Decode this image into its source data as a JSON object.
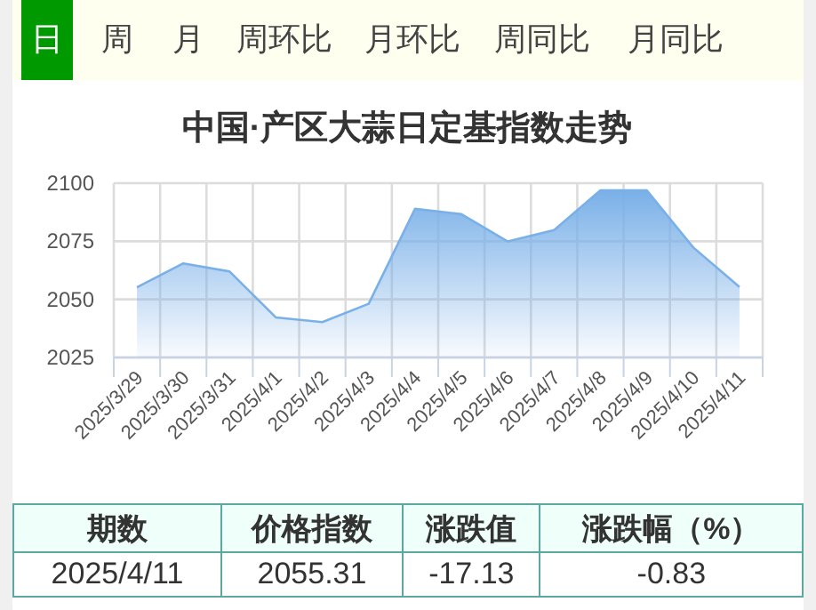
{
  "chart_data": [
    {
      "type": "other",
      "annotations": [
        "日",
        "周",
        "月",
        "周环比",
        "月环比",
        "周同比",
        "月同比"
      ]
    },
    {
      "type": "area",
      "title": "中国·产区大蒜日定基指数走势",
      "categories": [
        "2025/3/29",
        "2025/3/30",
        "2025/3/31",
        "2025/4/1",
        "2025/4/2",
        "2025/4/3",
        "2025/4/4",
        "2025/4/5",
        "2025/4/6",
        "2025/4/7",
        "2025/4/8",
        "2025/4/9",
        "2025/4/10",
        "2025/4/11"
      ],
      "values": [
        2055.2,
        2065.5,
        2062,
        2042.2,
        2040.2,
        2048.1,
        2089,
        2086.7,
        2074.9,
        2079.8,
        2096.9,
        2096.9,
        2072.4,
        2055.3
      ],
      "color": "#7ab0e8",
      "ylim": [
        2025,
        2100
      ],
      "yticks": [
        2025,
        2050,
        2075,
        2100
      ],
      "grid": true,
      "marker": "none",
      "line_style": "solid"
    },
    {
      "type": "other",
      "annotations": [
        "期数",
        "价格指数",
        "涨跌值",
        "涨跌幅（%）",
        "2025/4/11",
        "2055.31",
        "-17.13",
        "-0.83"
      ]
    }
  ]
}
